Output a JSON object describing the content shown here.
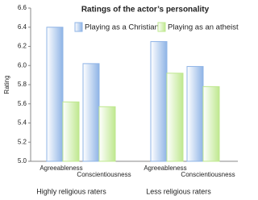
{
  "chart_data": {
    "type": "bar",
    "title": "Ratings of the actor’s personality",
    "y_label": "Rating",
    "groups": [
      {
        "name": "Highly religious raters",
        "categories": [
          "Agreeableness",
          "Conscientiousness"
        ]
      },
      {
        "name": "Less religious raters",
        "categories": [
          "Agreeableness",
          "Conscientiousness"
        ]
      }
    ],
    "series": [
      {
        "name": "Playing as a Christian",
        "color": "#8fb4e6",
        "values": [
          6.4,
          6.02,
          6.25,
          5.99
        ]
      },
      {
        "name": "Playing as an atheist",
        "color": "#bfe88f",
        "values": [
          5.62,
          5.57,
          5.92,
          5.78
        ]
      }
    ],
    "ylim": [
      5.0,
      6.6
    ],
    "yticks": [
      {
        "value": 5.0,
        "label": "5.0"
      },
      5.2,
      5.4,
      5.6,
      5.8,
      {
        "value": 6.0,
        "label": "6.0"
      },
      6.2,
      6.4,
      6.6
    ],
    "grid": false,
    "legend": "top"
  }
}
